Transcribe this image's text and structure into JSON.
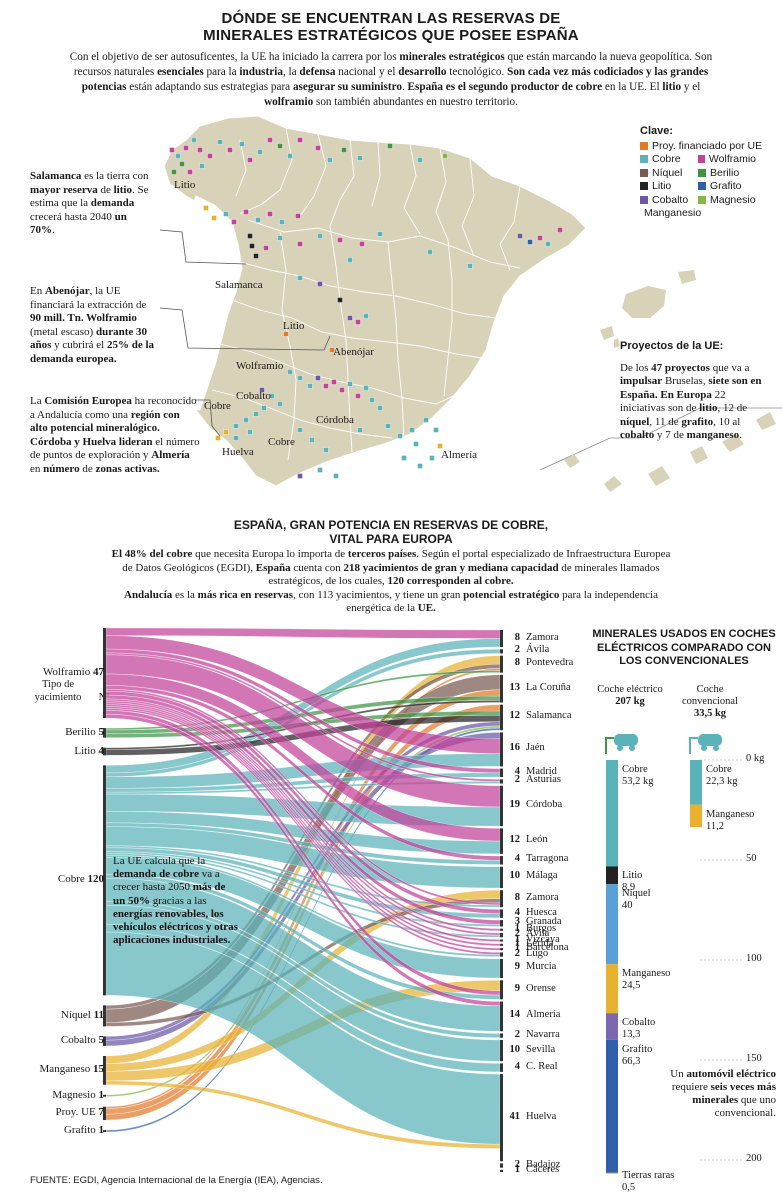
{
  "header": {
    "title_line1": "DÓNDE SE ENCUENTRAN LAS RESERVAS DE",
    "title_line2": "MINERALES ESTRATÉGICOS QUE POSEE ESPAÑA",
    "intro_html": "Con el objetivo de ser autosuficentes, la UE ha iniciado la carrera por los <b>minerales estratégicos</b> que están marcando la nueva geopolítica. Son recursos naturales <b>esenciales</b> para la <b>industria</b>, la <b>defensa</b> nacional y el <b>desarrollo</b> tecnológico. <b>Son cada vez más codiciados y las grandes potencias</b> están adaptando sus estrategias para <b>asegurar su suministro</b>. <b>España es el segundo productor de cobre</b> en la UE. El <b>litio</b> y el <b>wolframio</b> son también abundantes en nuestro territorio."
  },
  "map": {
    "note_salamanca_html": "<b>Salamanca</b> es la tierra con <b>mayor reserva</b> de <b>litio</b>. Se estima que la <b>demanda</b> crecerá hasta 2040 <b>un 70%</b>.",
    "note_abenojar_html": "En <b>Abenójar</b>, la UE financiará la extracción de <b>90 mill. Tn. Wolframio</b> (metal escaso) <b>durante 30 años</b> y cubrirá el <b>25% de la demanda europea.</b>",
    "note_andalucia_html": "La <b>Comisión Europea</b> ha reconocido a Andalucía como una <b>región con alto potencial mineralógico. Córdoba y Huelva lideran</b> el número de puntos de exploración y <b>Almería</b> en <b>número</b> de <b>zonas activas.</b>",
    "labels": [
      "Litio",
      "Salamanca",
      "Litio",
      "Abenójar",
      "Wolframio",
      "Cobalto",
      "Cobre",
      "Córdoba",
      "Cobre",
      "Huelva",
      "Almería"
    ],
    "legend_title": "Clave:",
    "legend": [
      {
        "name": "Proy. financiado por UE",
        "color": "#e07a2e"
      },
      {
        "name": "Cobre",
        "color": "#5ab3b8"
      },
      {
        "name": "Wolframio",
        "color": "#c2419a"
      },
      {
        "name": "Níquel",
        "color": "#7a5a52"
      },
      {
        "name": "Berilio",
        "color": "#3f9445"
      },
      {
        "name": "Litio",
        "color": "#222222"
      },
      {
        "name": "Grafito",
        "color": "#2f5fa8"
      },
      {
        "name": "Cobalto",
        "color": "#6b58a6"
      },
      {
        "name": "Magnesio",
        "color": "#86b847"
      },
      {
        "name": "Manganesio",
        "color": "#e8b130"
      }
    ],
    "proj_title": "Proyectos de la UE:",
    "proj_html": "De los <b>47 proyectos</b> que va a <b>impulsar</b> Bruselas, <b>siete son en España. En Europa</b> 22 iniciativas son de <b>litio</b>, 12 de <b>níquel</b>, 11 de <b>grafito</b>, 10 al <b>cobalto</b> y 7 de <b>manganeso</b>."
  },
  "section2": {
    "title_line1": "ESPAÑA, GRAN POTENCIA EN RESERVAS DE COBRE,",
    "title_line2": "VITAL PARA EUROPA",
    "intro_html": "<b>El 48% del cobre</b> que necesita Europa lo importa de <b>terceros países</b>. Según el portal especializado de Infraestructura Europea de Datos Geológicos (EGDI), <b>España</b> cuenta con <b>218 yacimientos de gran y mediana capacidad</b> de minerales llamados estratégicos, de los cuales, <b>120 corresponden al cobre.</b><br><b>Andalucía</b> es la <b>más rica en reservas</b>, con 113 yacimientos, y tiene un gran <b>potencial estratégico</b> para la independencia energética de la <b>UE.</b>"
  },
  "chart_data": [
    {
      "type": "sankey",
      "source_header": "Tipo de yacimiento",
      "count_header": "Nº",
      "sources": [
        {
          "name": "Wolframio",
          "value": 47,
          "color": "#c2419a"
        },
        {
          "name": "Berilio",
          "value": 5,
          "color": "#3f9445"
        },
        {
          "name": "Litio",
          "value": 4,
          "color": "#222222"
        },
        {
          "name": "Cobre",
          "value": 120,
          "color": "#5ab3b8"
        },
        {
          "name": "Níquel",
          "value": 11,
          "color": "#7a5a52"
        },
        {
          "name": "Cobalto",
          "value": 5,
          "color": "#6b58a6"
        },
        {
          "name": "Manganeso",
          "value": 15,
          "color": "#e8b130"
        },
        {
          "name": "Magnesio",
          "value": 1,
          "color": "#86b847"
        },
        {
          "name": "Proy. UE",
          "value": 7,
          "color": "#e07a2e"
        },
        {
          "name": "Grafito",
          "value": 1,
          "color": "#2f5fa8"
        }
      ],
      "targets": [
        {
          "name": "Zamora",
          "value": 8
        },
        {
          "name": "Ávila",
          "value": 2
        },
        {
          "name": "Pontevedra",
          "value": 8
        },
        {
          "name": "La Coruña",
          "value": 13
        },
        {
          "name": "Salamanca",
          "value": 12
        },
        {
          "name": "Jaén",
          "value": 16
        },
        {
          "name": "Madrid",
          "value": 4
        },
        {
          "name": "Asturias",
          "value": 2
        },
        {
          "name": "Córdoba",
          "value": 19
        },
        {
          "name": "León",
          "value": 12
        },
        {
          "name": "Tarragona",
          "value": 4
        },
        {
          "name": "Málaga",
          "value": 10
        },
        {
          "name": "Zamora",
          "value": 8
        },
        {
          "name": "Huesca",
          "value": 4
        },
        {
          "name": "Granada",
          "value": 3
        },
        {
          "name": "Burgos",
          "value": 1
        },
        {
          "name": "Ávila",
          "value": 2
        },
        {
          "name": "Vizcaya",
          "value": 1
        },
        {
          "name": "Lérida",
          "value": 1
        },
        {
          "name": "Barcelona",
          "value": 1
        },
        {
          "name": "Lugo",
          "value": 2
        },
        {
          "name": "Murcia",
          "value": 9
        },
        {
          "name": "Orense",
          "value": 9
        },
        {
          "name": "Almería",
          "value": 14
        },
        {
          "name": "Navarra",
          "value": 2
        },
        {
          "name": "Sevilla",
          "value": 10
        },
        {
          "name": "C. Real",
          "value": 4
        },
        {
          "name": "Huelva",
          "value": 41
        },
        {
          "name": "Badajoz",
          "value": 2
        },
        {
          "name": "Cáceres",
          "value": 1
        }
      ],
      "note_html": "La UE calcula que la <b>demanda de cobre</b> va a crecer hasta 2050 <b>más de un 50%</b> gracias a las <b>energías renovables, los vehículos eléctricos y otras aplicaciones industriales.</b>"
    },
    {
      "type": "bar",
      "title": "MINERALES USADOS EN COCHES ELÉCTRICOS COMPARADO CON LOS CONVENCIONALES",
      "ylim": [
        0,
        200
      ],
      "yticks": [
        0,
        50,
        100,
        150,
        200
      ],
      "ytick_labels": [
        "0 kg",
        "50",
        "100",
        "150",
        "200"
      ],
      "bars": [
        {
          "name": "Coche eléctrico",
          "total_label": "207 kg",
          "segments": [
            {
              "name": "Cobre",
              "value": 53.2,
              "label": "53,2 kg",
              "color": "#5ab3b8"
            },
            {
              "name": "Litio",
              "value": 8.9,
              "label": "8,9",
              "color": "#222222"
            },
            {
              "name": "Níquel",
              "value": 40,
              "label": "40",
              "color": "#5aa0d8"
            },
            {
              "name": "Manganeso",
              "value": 24.5,
              "label": "24,5",
              "color": "#e8b130"
            },
            {
              "name": "Cobalto",
              "value": 13.3,
              "label": "13,3",
              "color": "#7c67b0"
            },
            {
              "name": "Grafito",
              "value": 66.3,
              "label": "66,3",
              "color": "#2f5fa8"
            },
            {
              "name": "Tierras raras",
              "value": 0.5,
              "label": "0,5",
              "color": "#777777"
            }
          ]
        },
        {
          "name": "Coche convencional",
          "total_label": "33,5 kg",
          "segments": [
            {
              "name": "Cobre",
              "value": 22.3,
              "label": "22,3 kg",
              "color": "#5ab3b8"
            },
            {
              "name": "Manganeso",
              "value": 11.2,
              "label": "11,2",
              "color": "#e8b130"
            }
          ]
        }
      ],
      "note_html": "Un <b>automóvil eléctrico</b> requiere <b>seis veces más minerales</b> que uno convencional."
    }
  ],
  "footer": {
    "source": "FUENTE: EGDI, Agencia Internacional de la Energía (IEA), Agencias."
  }
}
